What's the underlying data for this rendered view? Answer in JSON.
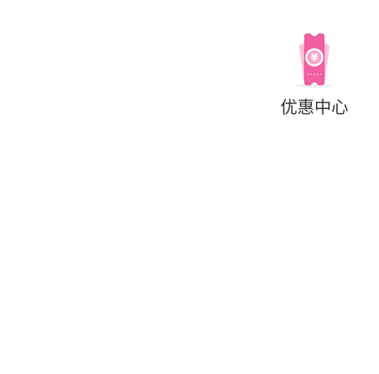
{
  "shortcuts": [
    {
      "label": "优惠中心",
      "icon": "coupon-icon",
      "icon_symbol": "¥",
      "colors": {
        "primary": "#f25fa3",
        "light": "#f8a3c9",
        "back_card": "#fbc2dc",
        "outline": "#e04a92",
        "shadow": "#eeeeee"
      }
    }
  ]
}
